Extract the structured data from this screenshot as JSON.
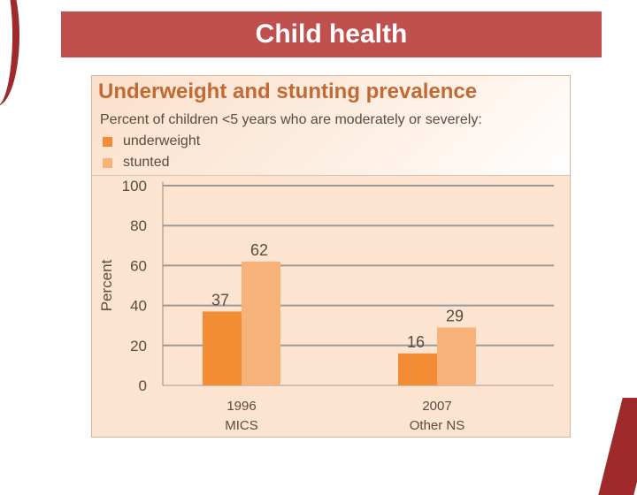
{
  "slide": {
    "title": "Child health"
  },
  "colors": {
    "banner": "#c0504d",
    "panel": "#fce4d1",
    "underweight": "#f28c35",
    "stunted": "#f7b27a",
    "grid": "#9a9a9a",
    "text": "#5b4a40",
    "title": "#c26a33"
  },
  "chart_data": {
    "type": "bar",
    "title": "Underweight and stunting prevalence",
    "subtitle": "Percent of children <5 years who are moderately or severely:",
    "xlabel": "",
    "ylabel": "Percent",
    "ylim": [
      0,
      100
    ],
    "yticks": [
      0,
      20,
      40,
      60,
      80,
      100
    ],
    "grid": true,
    "legend_position": "top-left",
    "categories": [
      {
        "year": "1996",
        "source": "MICS"
      },
      {
        "year": "2007",
        "source": "Other NS"
      }
    ],
    "series": [
      {
        "name": "underweight",
        "color": "#f28c35",
        "values": [
          37,
          16
        ]
      },
      {
        "name": "stunted",
        "color": "#f7b27a",
        "values": [
          62,
          29
        ]
      }
    ]
  }
}
